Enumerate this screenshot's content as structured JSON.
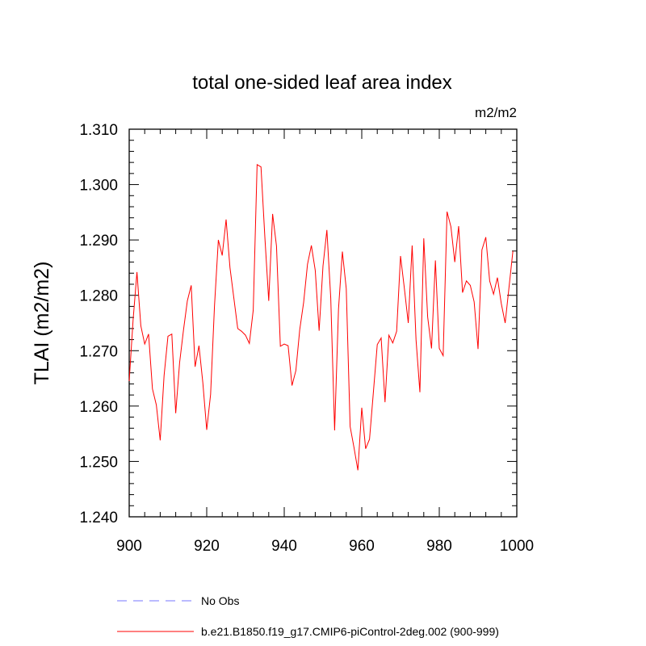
{
  "chart_data": {
    "type": "line",
    "title": "total one-sided leaf area index",
    "units_label": "m2/m2",
    "ylabel": "TLAI  (m2/m2)",
    "xlabel": "",
    "xlim": [
      900,
      1000
    ],
    "ylim": [
      1.24,
      1.31
    ],
    "xticks": [
      900,
      920,
      940,
      960,
      980,
      1000
    ],
    "xtick_labels": [
      "900",
      "920",
      "940",
      "960",
      "980",
      "1000"
    ],
    "yticks": [
      1.24,
      1.25,
      1.26,
      1.27,
      1.28,
      1.29,
      1.3,
      1.31
    ],
    "ytick_labels": [
      "1.240",
      "1.250",
      "1.260",
      "1.270",
      "1.280",
      "1.290",
      "1.300",
      "1.310"
    ],
    "grid": false,
    "legend_position": "bottom",
    "series": [
      {
        "name": "b.e21.B1850.f19_g17.CMIP6-piControl-2deg.002 (900-999)",
        "color": "#ff0000",
        "style": "solid",
        "x": [
          900,
          901,
          902,
          903,
          904,
          905,
          906,
          907,
          908,
          909,
          910,
          911,
          912,
          913,
          914,
          915,
          916,
          917,
          918,
          919,
          920,
          921,
          922,
          923,
          924,
          925,
          926,
          927,
          928,
          929,
          930,
          931,
          932,
          933,
          934,
          935,
          936,
          937,
          938,
          939,
          940,
          941,
          942,
          943,
          944,
          945,
          946,
          947,
          948,
          949,
          950,
          951,
          952,
          953,
          954,
          955,
          956,
          957,
          958,
          959,
          960,
          961,
          962,
          963,
          964,
          965,
          966,
          967,
          968,
          969,
          970,
          971,
          972,
          973,
          974,
          975,
          976,
          977,
          978,
          979,
          980,
          981,
          982,
          983,
          984,
          985,
          986,
          987,
          988,
          989,
          990,
          991,
          992,
          993,
          994,
          995,
          996,
          997,
          998,
          999
        ],
        "values": [
          1.2645,
          1.2755,
          1.2842,
          1.2745,
          1.2712,
          1.273,
          1.2631,
          1.2602,
          1.2538,
          1.2655,
          1.2726,
          1.273,
          1.2587,
          1.2678,
          1.2737,
          1.279,
          1.2818,
          1.2671,
          1.2709,
          1.2642,
          1.2557,
          1.2621,
          1.278,
          1.29,
          1.2872,
          1.2937,
          1.285,
          1.2795,
          1.274,
          1.2735,
          1.2728,
          1.2713,
          1.2773,
          1.3036,
          1.3032,
          1.2905,
          1.279,
          1.2947,
          1.2889,
          1.2708,
          1.2712,
          1.2709,
          1.2637,
          1.2664,
          1.2738,
          1.2787,
          1.2856,
          1.289,
          1.2845,
          1.2736,
          1.2853,
          1.2918,
          1.2795,
          1.2556,
          1.2775,
          1.2879,
          1.2812,
          1.2563,
          1.2525,
          1.2484,
          1.2597,
          1.2523,
          1.254,
          1.2625,
          1.2711,
          1.2723,
          1.2607,
          1.2728,
          1.2714,
          1.2735,
          1.2871,
          1.2812,
          1.275,
          1.289,
          1.272,
          1.2625,
          1.2903,
          1.2761,
          1.2704,
          1.2863,
          1.2704,
          1.2691,
          1.2951,
          1.2924,
          1.286,
          1.2925,
          1.2805,
          1.2826,
          1.2818,
          1.2788,
          1.2703,
          1.2882,
          1.2905,
          1.2826,
          1.2802,
          1.2832,
          1.2785,
          1.275,
          1.2815,
          1.288
        ]
      }
    ],
    "reference_series": {
      "name": "No Obs",
      "color": "#7777ff",
      "style": "dashed"
    }
  }
}
